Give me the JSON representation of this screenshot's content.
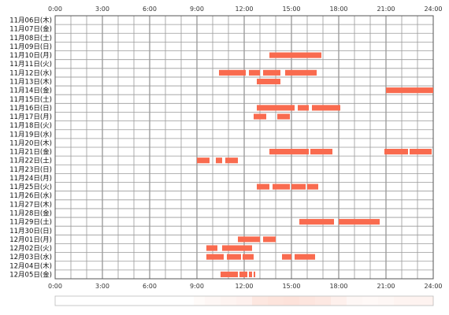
{
  "chart_data": {
    "type": "timeline",
    "title": "",
    "bar_color": "#f96b4f",
    "strip_color": "#f9b49f",
    "x_ticks": [
      "0:00",
      "3:00",
      "6:00",
      "9:00",
      "12:00",
      "15:00",
      "18:00",
      "21:00",
      "24:00"
    ],
    "xlim": [
      0,
      24
    ],
    "grid": true,
    "rows": [
      {
        "label": "11月06日(木)",
        "segments": []
      },
      {
        "label": "11月07日(金)",
        "segments": []
      },
      {
        "label": "11月08日(土)",
        "segments": []
      },
      {
        "label": "11月09日(日)",
        "segments": []
      },
      {
        "label": "11月10日(月)",
        "segments": [
          [
            13.6,
            16.9
          ]
        ]
      },
      {
        "label": "11月11日(火)",
        "segments": []
      },
      {
        "label": "11月12日(水)",
        "segments": [
          [
            10.4,
            12.1
          ],
          [
            12.3,
            13.0
          ],
          [
            13.2,
            14.3
          ],
          [
            14.6,
            16.6
          ]
        ]
      },
      {
        "label": "11月13日(木)",
        "segments": [
          [
            12.8,
            14.3
          ]
        ]
      },
      {
        "label": "11月14日(金)",
        "segments": [
          [
            21.0,
            24.0
          ]
        ]
      },
      {
        "label": "11月15日(土)",
        "segments": []
      },
      {
        "label": "11月16日(日)",
        "segments": [
          [
            12.8,
            15.2
          ],
          [
            15.4,
            16.1
          ],
          [
            16.3,
            18.1
          ]
        ]
      },
      {
        "label": "11月17日(月)",
        "segments": [
          [
            12.6,
            13.4
          ],
          [
            14.1,
            14.9
          ]
        ]
      },
      {
        "label": "11月18日(火)",
        "segments": []
      },
      {
        "label": "11月19日(水)",
        "segments": []
      },
      {
        "label": "11月20日(木)",
        "segments": []
      },
      {
        "label": "11月21日(金)",
        "segments": [
          [
            13.6,
            16.1
          ],
          [
            16.2,
            17.6
          ],
          [
            20.9,
            22.4
          ],
          [
            22.5,
            23.9
          ]
        ]
      },
      {
        "label": "11月22日(土)",
        "segments": [
          [
            9.0,
            9.8
          ],
          [
            10.2,
            10.6
          ],
          [
            10.8,
            11.6
          ]
        ]
      },
      {
        "label": "11月23日(日)",
        "segments": []
      },
      {
        "label": "11月24日(月)",
        "segments": []
      },
      {
        "label": "11月25日(火)",
        "segments": [
          [
            12.8,
            13.6
          ],
          [
            13.8,
            14.9
          ],
          [
            15.0,
            15.9
          ],
          [
            16.0,
            16.7
          ]
        ]
      },
      {
        "label": "11月26日(水)",
        "segments": []
      },
      {
        "label": "11月27日(木)",
        "segments": []
      },
      {
        "label": "11月28日(金)",
        "segments": []
      },
      {
        "label": "11月29日(土)",
        "segments": [
          [
            15.5,
            17.7
          ],
          [
            18.0,
            20.6
          ]
        ]
      },
      {
        "label": "11月30日(日)",
        "segments": []
      },
      {
        "label": "12月01日(月)",
        "segments": [
          [
            11.6,
            13.0
          ],
          [
            13.2,
            14.0
          ]
        ]
      },
      {
        "label": "12月02日(火)",
        "segments": [
          [
            9.6,
            10.3
          ],
          [
            10.6,
            12.5
          ]
        ]
      },
      {
        "label": "12月03日(水)",
        "segments": [
          [
            9.6,
            10.7
          ],
          [
            10.9,
            11.8
          ],
          [
            11.9,
            12.6
          ],
          [
            14.4,
            15.0
          ],
          [
            15.2,
            16.5
          ]
        ]
      },
      {
        "label": "12月04日(木)",
        "segments": []
      },
      {
        "label": "12月05日(金)",
        "segments": [
          [
            10.5,
            11.6
          ],
          [
            11.7,
            12.2
          ],
          [
            12.3,
            12.5
          ],
          [
            12.6,
            12.7
          ]
        ]
      }
    ],
    "activity_strip": [
      [
        8.8,
        0.06
      ],
      [
        9.5,
        0.1
      ],
      [
        10.5,
        0.14
      ],
      [
        11.5,
        0.18
      ],
      [
        12.5,
        0.32
      ],
      [
        13.5,
        0.36
      ],
      [
        14.5,
        0.38
      ],
      [
        15.5,
        0.34
      ],
      [
        16.5,
        0.3
      ],
      [
        17.5,
        0.2
      ],
      [
        18.5,
        0.1
      ],
      [
        19.5,
        0.08
      ],
      [
        20.5,
        0.1
      ],
      [
        21.5,
        0.14
      ],
      [
        22.5,
        0.16
      ],
      [
        23.5,
        0.16
      ]
    ]
  }
}
